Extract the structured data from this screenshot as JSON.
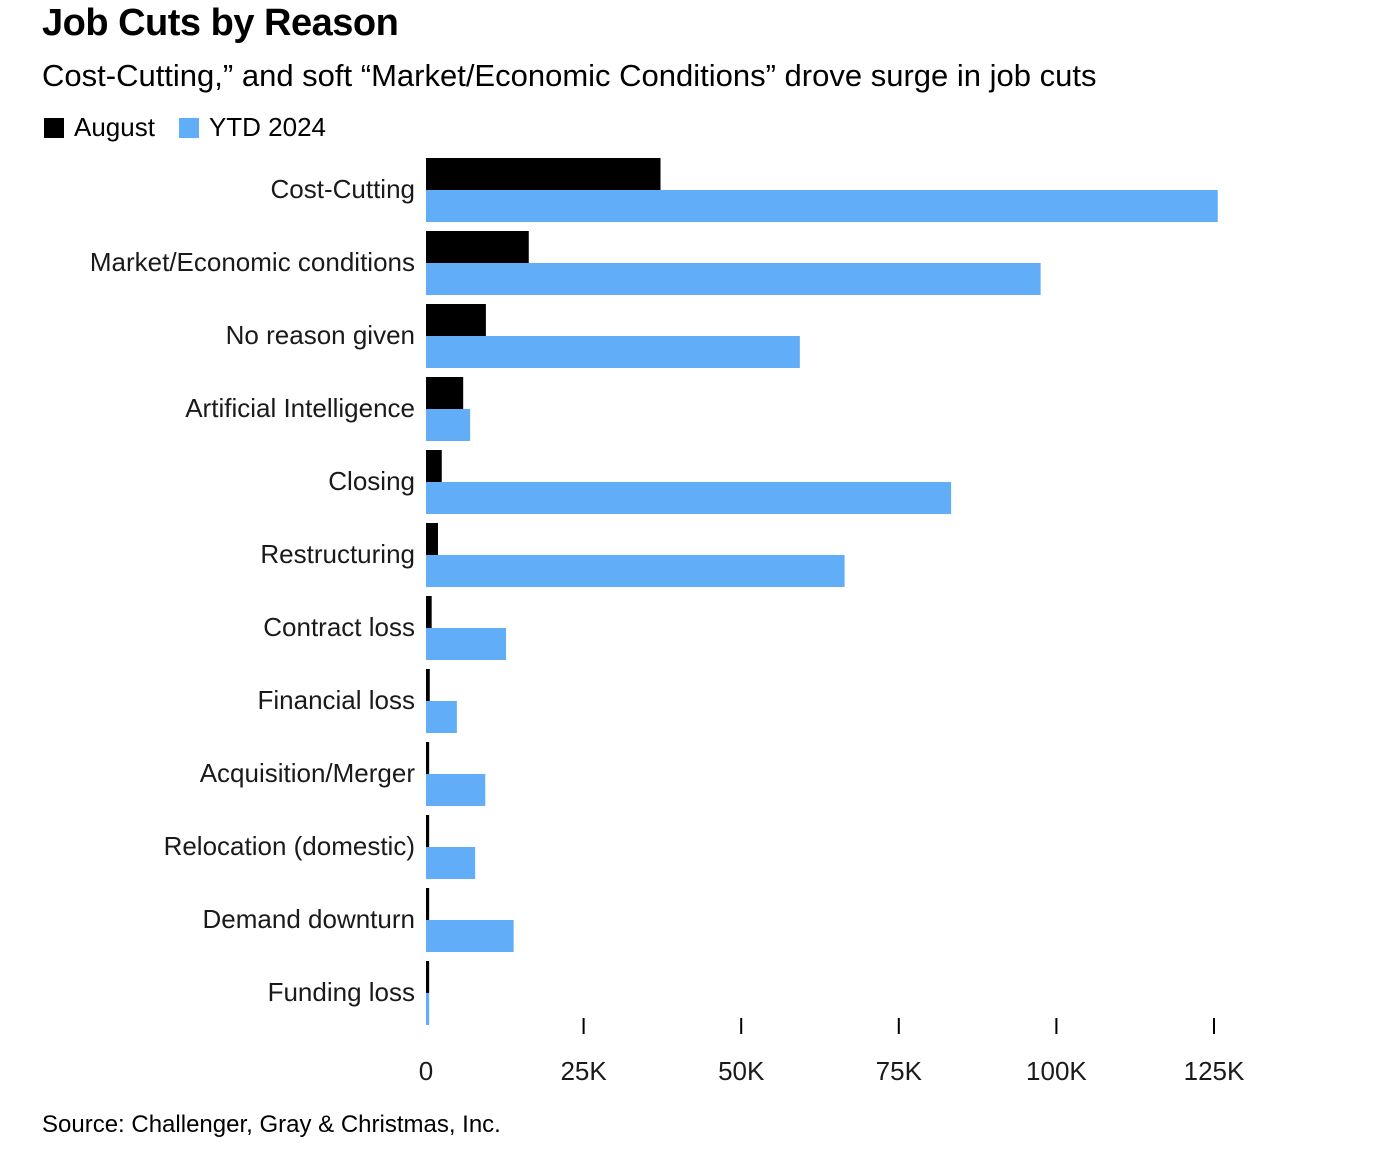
{
  "header": {
    "title": "Job Cuts by Reason",
    "subtitle": "Cost-Cutting,” and soft “Market/Economic Conditions” drove surge in job cuts"
  },
  "footer": {
    "source": "Source: Challenger, Gray & Christmas, Inc."
  },
  "colors": {
    "august": "#000000",
    "ytd": "#62adf7",
    "axis": "#000000"
  },
  "chart_data": {
    "type": "bar",
    "orientation": "horizontal",
    "title": "Job Cuts by Reason",
    "subtitle": "Cost-Cutting,” and soft “Market/Economic Conditions” drove surge in job cuts",
    "categories": [
      "Cost-Cutting",
      "Market/Economic conditions",
      "No reason given",
      "Artificial Intelligence",
      "Closing",
      "Restructuring",
      "Contract loss",
      "Financial loss",
      "Acquisition/Merger",
      "Relocation (domestic)",
      "Demand downturn",
      "Funding loss"
    ],
    "series": [
      {
        "name": "August",
        "color": "#000000",
        "values": [
          37200,
          16300,
          9500,
          5900,
          2500,
          1900,
          900,
          600,
          500,
          500,
          500,
          500
        ]
      },
      {
        "name": "YTD 2024",
        "color": "#62adf7",
        "values": [
          125600,
          97500,
          59300,
          7000,
          83300,
          66400,
          12700,
          4900,
          9400,
          7800,
          13900,
          500
        ]
      }
    ],
    "x_ticks": [
      0,
      25000,
      50000,
      75000,
      100000,
      125000
    ],
    "x_tick_labels": [
      "0",
      "25K",
      "50K",
      "75K",
      "100K",
      "125K"
    ],
    "xlim": [
      0,
      130000
    ],
    "legend_position": "top-left",
    "grid": false,
    "xlabel": "",
    "ylabel": ""
  }
}
